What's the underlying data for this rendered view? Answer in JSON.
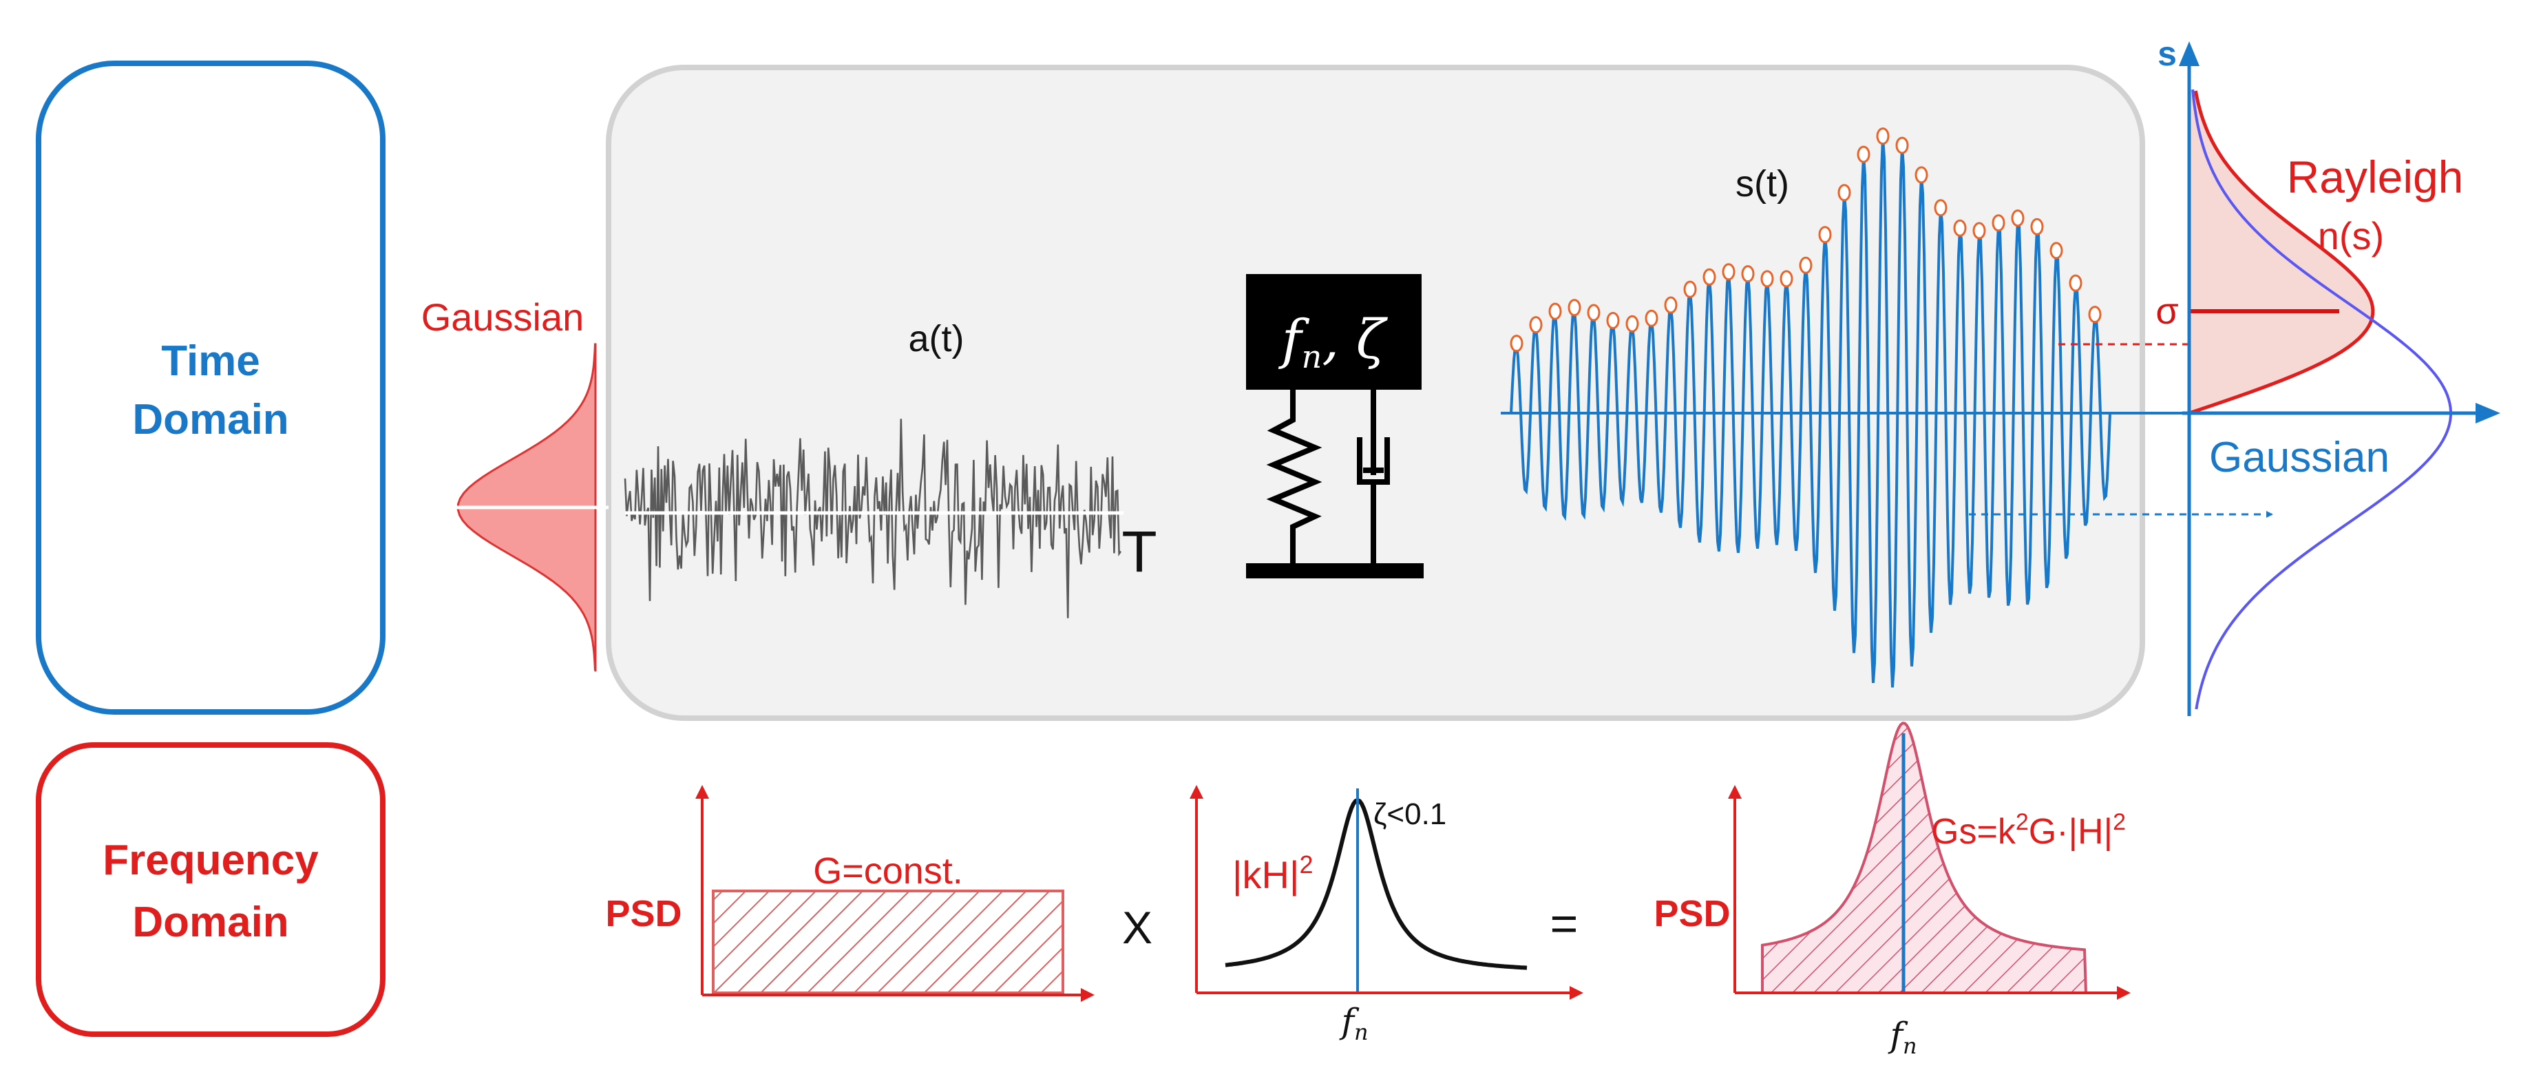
{
  "time_domain": {
    "label_line1": "Time",
    "label_line2": "Domain",
    "color": "#1a78c8",
    "input_signal_label": "a(t)",
    "duration_label": "T",
    "input_distribution_label": "Gaussian",
    "system_label": "f_n, ζ",
    "system_label_parts": {
      "f": "f",
      "n": "n",
      "sep": ", ",
      "zeta": "ζ"
    },
    "response_label": "s(t)",
    "axis_s_label": "s",
    "sigma_label": "σ",
    "rayleigh_label": "Rayleigh",
    "rayleigh_sub_label": "n(s)",
    "gaussian_label": "Gaussian"
  },
  "frequency_domain": {
    "label_line1": "Frequency",
    "label_line2": "Domain",
    "color": "#e01e1e",
    "input_psd_ylabel": "PSD",
    "input_psd_label": "G=const.",
    "multiply_sign": "X",
    "transfer_label_base": "|kH|",
    "transfer_label_sup": "2",
    "zeta_note": "ζ<0.1",
    "fn_label": "f",
    "fn_sub": "n",
    "equals_sign": "=",
    "output_psd_ylabel": "PSD",
    "output_label_parts": {
      "a": "Gs=k",
      "b": "2",
      "c": "G·|H|",
      "d": "2"
    }
  },
  "colors": {
    "blue": "#1a78c8",
    "red": "#e01e1e",
    "signal_gray": "#555555",
    "panel_fill": "#f2f2f2",
    "panel_stroke": "#d0d0d0"
  }
}
